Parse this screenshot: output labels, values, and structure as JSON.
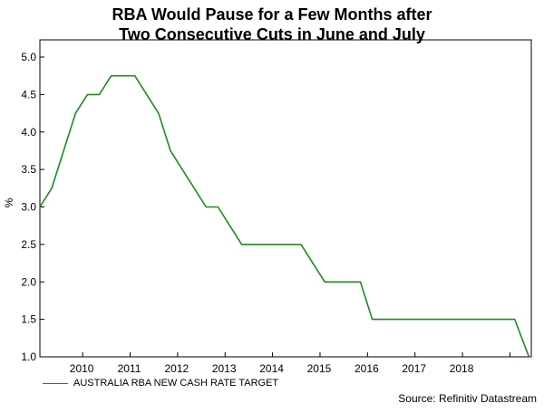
{
  "chart_data": {
    "type": "line",
    "title_line1": "RBA Would Pause for a Few Months after",
    "title_line2": "Two Consecutive Cuts in June and July",
    "ylabel": "%",
    "xlabel": "",
    "source": "Source: Refinitiv Datastream",
    "ylim": [
      1.0,
      5.0
    ],
    "xlim": [
      2009.1,
      2019.45
    ],
    "yticks": [
      "1.0",
      "1.5",
      "2.0",
      "2.5",
      "3.0",
      "3.5",
      "4.0",
      "4.5",
      "5.0"
    ],
    "xticks": [
      "2010",
      "2011",
      "2012",
      "2013",
      "2014",
      "2015",
      "2016",
      "2017",
      "2018"
    ],
    "grid": false,
    "legend_position": "bottom-left",
    "series": [
      {
        "name": "AUSTRALIA RBA NEW CASH RATE TARGET",
        "color": "#1f8a1f",
        "points": [
          [
            2009.1,
            3.0
          ],
          [
            2009.35,
            3.25
          ],
          [
            2009.6,
            3.75
          ],
          [
            2009.85,
            4.25
          ],
          [
            2010.1,
            4.5
          ],
          [
            2010.35,
            4.5
          ],
          [
            2010.6,
            4.75
          ],
          [
            2011.1,
            4.75
          ],
          [
            2011.6,
            4.25
          ],
          [
            2011.85,
            3.75
          ],
          [
            2012.35,
            3.25
          ],
          [
            2012.6,
            3.0
          ],
          [
            2012.85,
            3.0
          ],
          [
            2013.35,
            2.5
          ],
          [
            2013.6,
            2.5
          ],
          [
            2014.6,
            2.5
          ],
          [
            2015.1,
            2.0
          ],
          [
            2015.85,
            2.0
          ],
          [
            2016.1,
            1.5
          ],
          [
            2019.1,
            1.5
          ],
          [
            2019.4,
            1.0
          ]
        ]
      }
    ]
  }
}
